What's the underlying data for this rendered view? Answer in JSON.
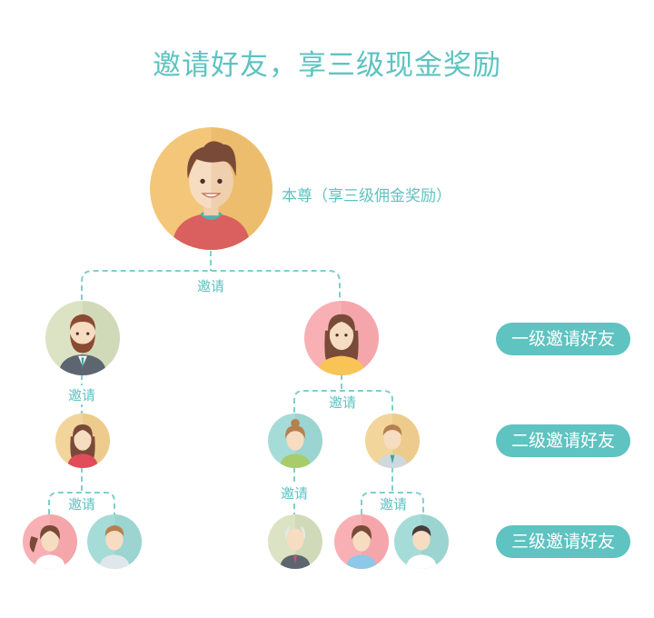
{
  "title": "邀请好友，享三级现金奖励",
  "self_label": "本尊（享三级佣金奖励）",
  "invite_label": "邀请",
  "levels": [
    {
      "label": "一级邀请好友"
    },
    {
      "label": "二级邀请好友"
    },
    {
      "label": "三级邀请好友"
    }
  ],
  "colors": {
    "accent": "#5ec3c1",
    "avatar_backgrounds": [
      "#f3c679",
      "#dbe3c4",
      "#f8b0b4",
      "#a6dcd8",
      "#f2d59a",
      "#cfe0c4"
    ]
  },
  "avatars": [
    {
      "icon": "young-man-icon"
    },
    {
      "icon": "bearded-man-icon"
    },
    {
      "icon": "woman-icon"
    },
    {
      "icon": "girl-icon"
    },
    {
      "icon": "woman-bun-icon"
    },
    {
      "icon": "man-tie-icon"
    },
    {
      "icon": "girl-ponytail-icon"
    },
    {
      "icon": "man-icon"
    },
    {
      "icon": "old-man-icon"
    },
    {
      "icon": "woman-shirt-icon"
    },
    {
      "icon": "man-suit-icon"
    }
  ]
}
